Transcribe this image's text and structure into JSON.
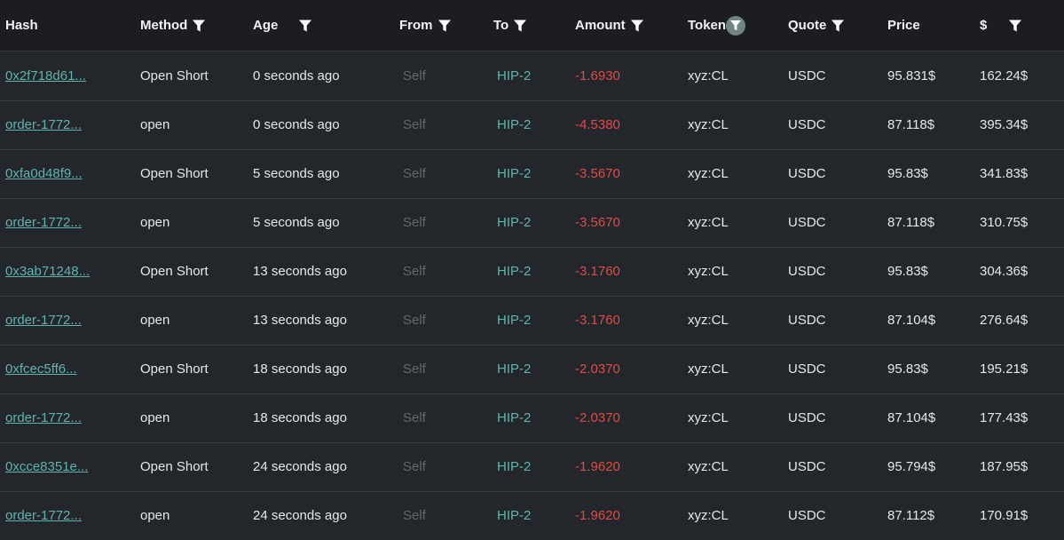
{
  "header": {
    "hash": "Hash",
    "method": "Method",
    "age": "Age",
    "from": "From",
    "to": "To",
    "amount": "Amount",
    "token": "Token",
    "quote": "Quote",
    "price": "Price",
    "value": "$"
  },
  "icons": {
    "filter": "filter-funnel-icon"
  },
  "colors": {
    "background": "#23262b",
    "header_background": "#1b1d20",
    "link": "#5fb4ad",
    "negative": "#e04b44",
    "muted": "#5f6b6b",
    "active_filter": "#6f8582"
  },
  "rows": [
    {
      "hash": "0x2f718d61...",
      "method": "Open Short",
      "age": "0 seconds ago",
      "from": "Self",
      "to": "HIP-2",
      "amount": "-1.6930",
      "token": "xyz:CL",
      "quote": "USDC",
      "price": "95.831$",
      "value": "162.24$"
    },
    {
      "hash": "order-1772...",
      "method": "open",
      "age": "0 seconds ago",
      "from": "Self",
      "to": "HIP-2",
      "amount": "-4.5380",
      "token": "xyz:CL",
      "quote": "USDC",
      "price": "87.118$",
      "value": "395.34$"
    },
    {
      "hash": "0xfa0d48f9...",
      "method": "Open Short",
      "age": "5 seconds ago",
      "from": "Self",
      "to": "HIP-2",
      "amount": "-3.5670",
      "token": "xyz:CL",
      "quote": "USDC",
      "price": "95.83$",
      "value": "341.83$"
    },
    {
      "hash": "order-1772...",
      "method": "open",
      "age": "5 seconds ago",
      "from": "Self",
      "to": "HIP-2",
      "amount": "-3.5670",
      "token": "xyz:CL",
      "quote": "USDC",
      "price": "87.118$",
      "value": "310.75$"
    },
    {
      "hash": "0x3ab71248...",
      "method": "Open Short",
      "age": "13 seconds ago",
      "from": "Self",
      "to": "HIP-2",
      "amount": "-3.1760",
      "token": "xyz:CL",
      "quote": "USDC",
      "price": "95.83$",
      "value": "304.36$"
    },
    {
      "hash": "order-1772...",
      "method": "open",
      "age": "13 seconds ago",
      "from": "Self",
      "to": "HIP-2",
      "amount": "-3.1760",
      "token": "xyz:CL",
      "quote": "USDC",
      "price": "87.104$",
      "value": "276.64$"
    },
    {
      "hash": "0xfcec5ff6...",
      "method": "Open Short",
      "age": "18 seconds ago",
      "from": "Self",
      "to": "HIP-2",
      "amount": "-2.0370",
      "token": "xyz:CL",
      "quote": "USDC",
      "price": "95.83$",
      "value": "195.21$"
    },
    {
      "hash": "order-1772...",
      "method": "open",
      "age": "18 seconds ago",
      "from": "Self",
      "to": "HIP-2",
      "amount": "-2.0370",
      "token": "xyz:CL",
      "quote": "USDC",
      "price": "87.104$",
      "value": "177.43$"
    },
    {
      "hash": "0xcce8351e...",
      "method": "Open Short",
      "age": "24 seconds ago",
      "from": "Self",
      "to": "HIP-2",
      "amount": "-1.9620",
      "token": "xyz:CL",
      "quote": "USDC",
      "price": "95.794$",
      "value": "187.95$"
    },
    {
      "hash": "order-1772...",
      "method": "open",
      "age": "24 seconds ago",
      "from": "Self",
      "to": "HIP-2",
      "amount": "-1.9620",
      "token": "xyz:CL",
      "quote": "USDC",
      "price": "87.112$",
      "value": "170.91$"
    }
  ]
}
